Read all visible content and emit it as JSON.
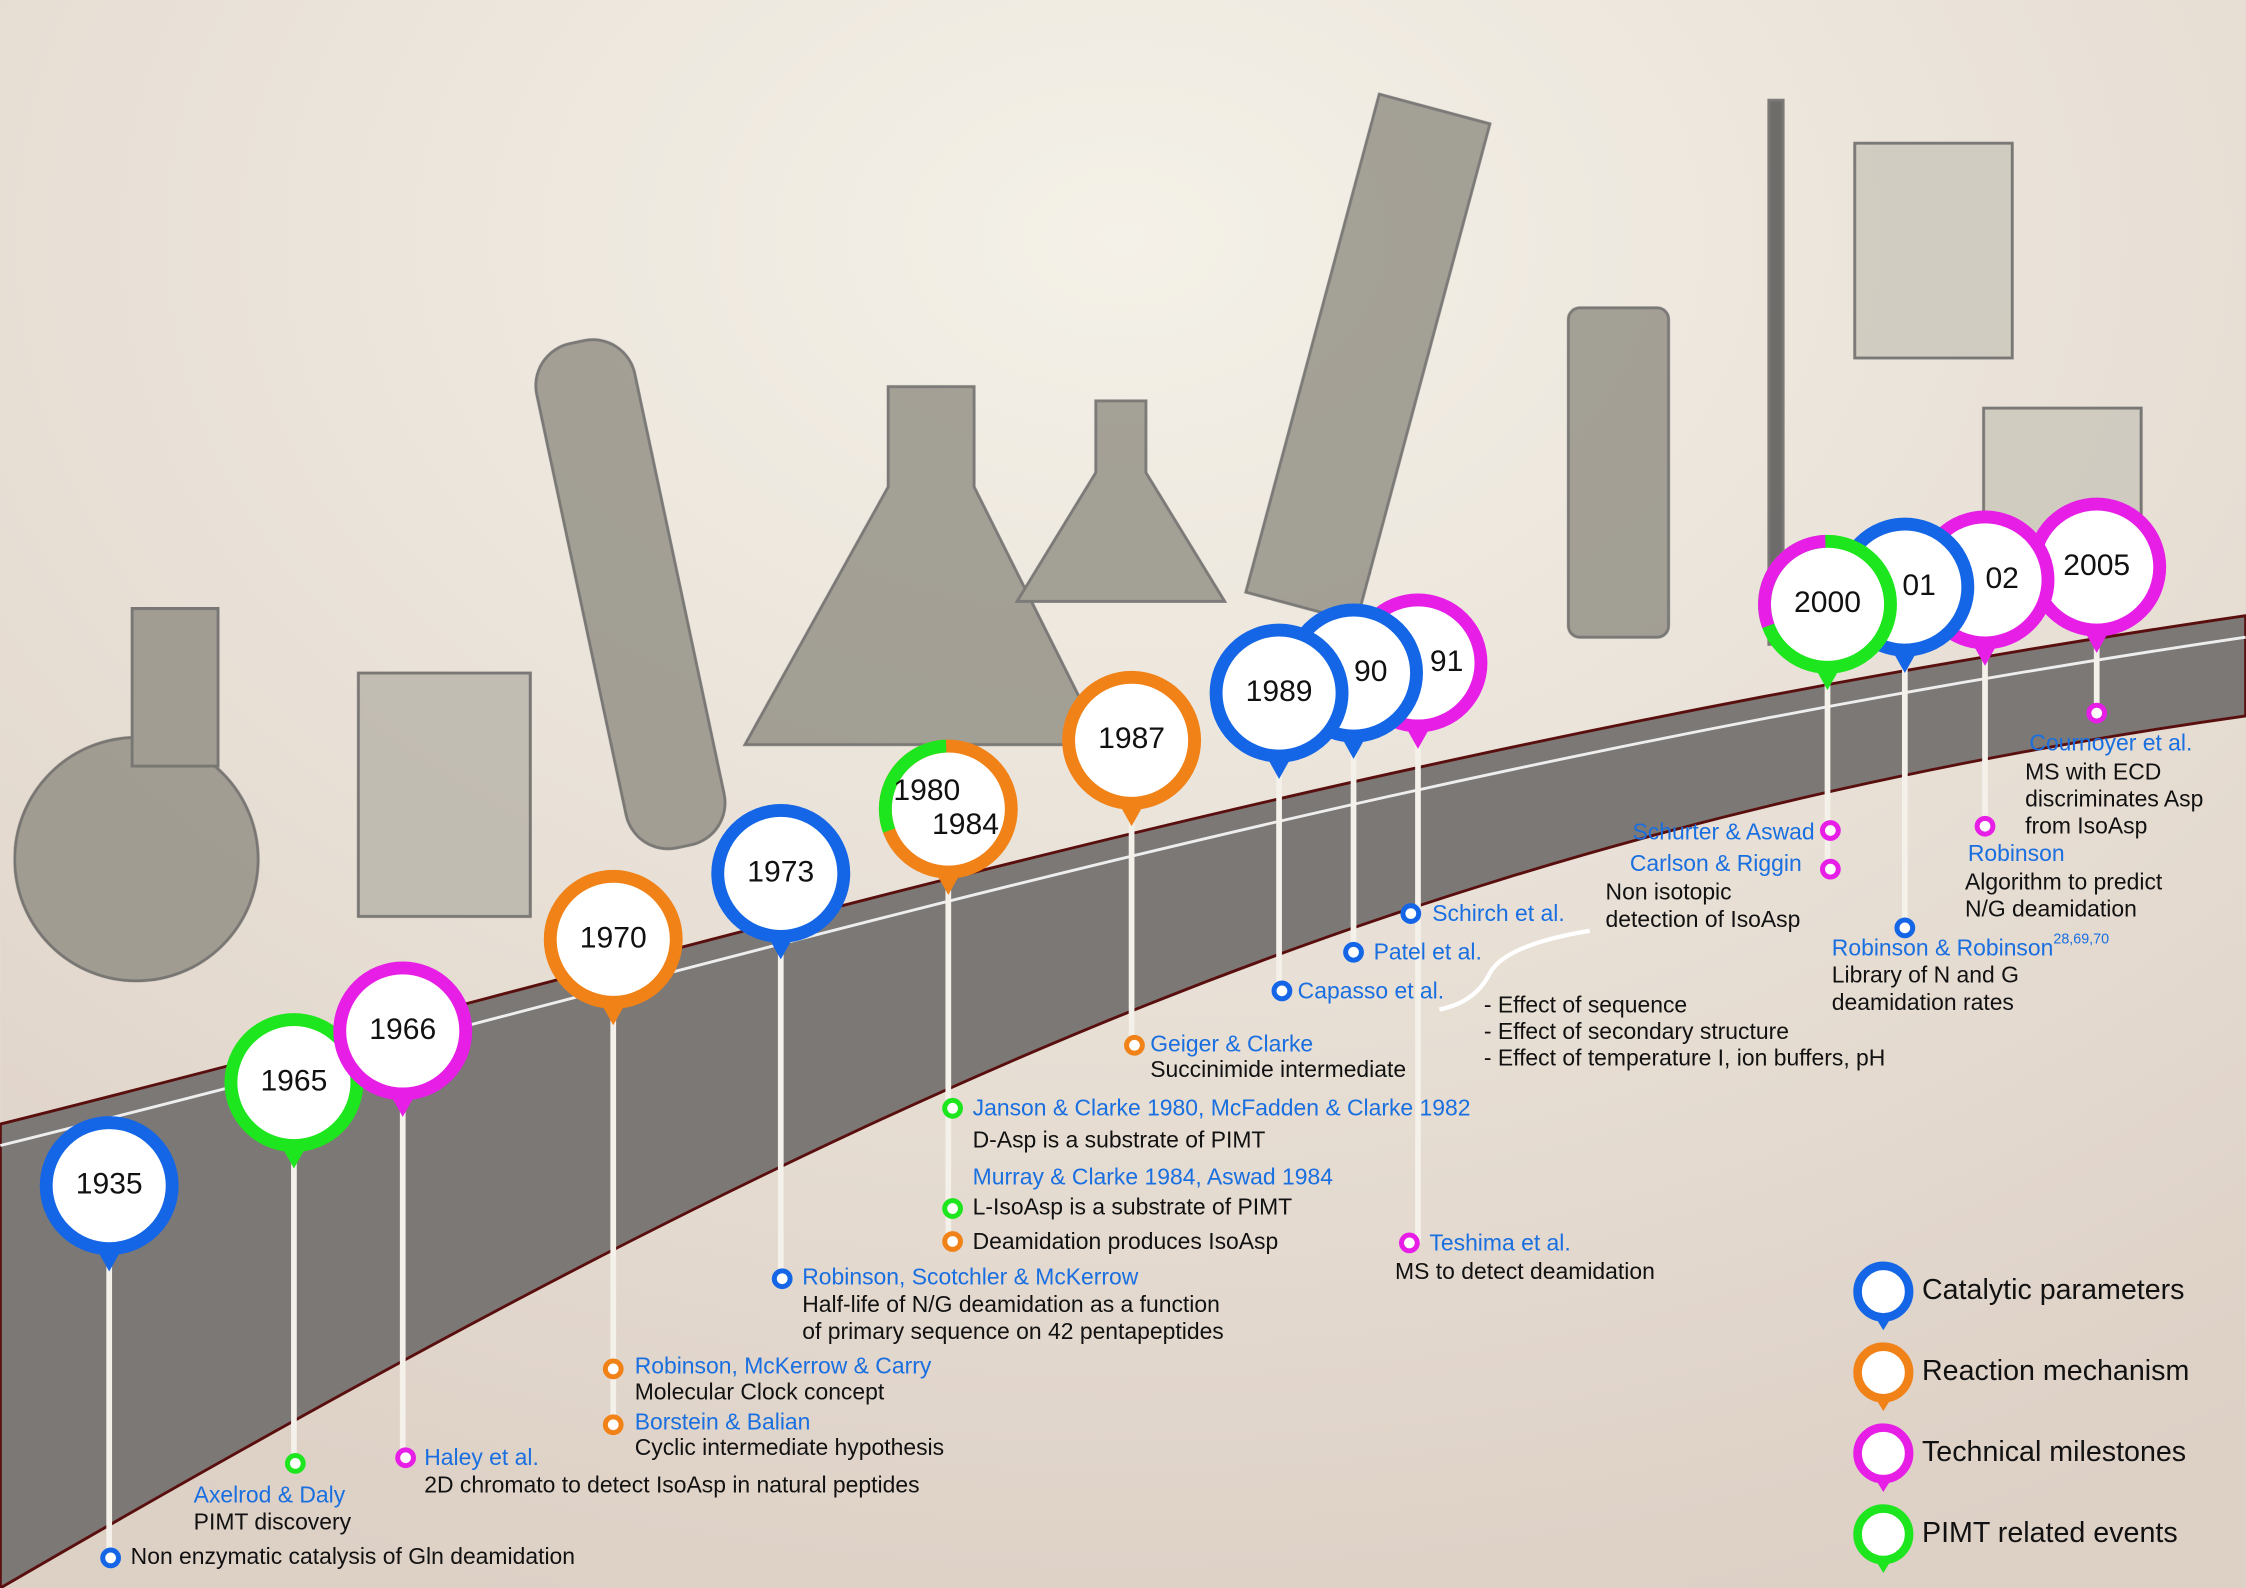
{
  "pins": [
    {
      "year": "1935"
    },
    {
      "year": "1965"
    },
    {
      "year": "1966"
    },
    {
      "year": "1970"
    },
    {
      "year": "1973"
    },
    {
      "year": "1980",
      "year2": "1984"
    },
    {
      "year": "1987"
    },
    {
      "year": "1989"
    },
    {
      "year": "90"
    },
    {
      "year": "91"
    },
    {
      "year": "2000"
    },
    {
      "year": "01"
    },
    {
      "year": "02"
    },
    {
      "year": "2005"
    }
  ],
  "entries": [
    {
      "lines": [
        "Non enzymatic catalysis of Gln deamidation"
      ]
    },
    {
      "author": "Axelrod & Daly",
      "lines": [
        "PIMT discovery"
      ]
    },
    {
      "author": "Haley et al.",
      "lines": [
        "2D chromato to detect IsoAsp in natural peptides"
      ]
    },
    {
      "author": "Robinson, McKerrow & Carry",
      "lines": [
        "Molecular Clock concept"
      ]
    },
    {
      "author": "Borstein & Balian",
      "lines": [
        "Cyclic intermediate hypothesis"
      ]
    },
    {
      "author": "Robinson, Scotchler & McKerrow",
      "lines": [
        "Half-life of N/G deamidation as a function",
        "of primary sequence on 42 pentapeptides"
      ]
    },
    {
      "author": "Janson & Clarke 1980, McFadden & Clarke 1982",
      "lines": [
        "D-Asp is a substrate of PIMT"
      ]
    },
    {
      "author": "Murray & Clarke 1984, Aswad 1984",
      "lines": [
        "L-IsoAsp is a substrate of PIMT"
      ]
    },
    {
      "lines": [
        "Deamidation produces IsoAsp"
      ]
    },
    {
      "author": "Geiger & Clarke",
      "lines": [
        "Succinimide intermediate"
      ]
    },
    {
      "author": "Capasso et al."
    },
    {
      "author": "Patel et al."
    },
    {
      "author": "Schirch et al."
    },
    {
      "author": "Teshima et al.",
      "lines": [
        "MS to detect deamidation"
      ]
    },
    {
      "author": "Schurter & Aswad"
    },
    {
      "author": "Carlson & Riggin",
      "lines": [
        "Non isotopic",
        "detection of IsoAsp"
      ]
    },
    {
      "author": "Robinson & Robinson",
      "sup": "28,69,70",
      "lines": [
        "Library of N and G",
        "deamidation rates"
      ]
    },
    {
      "author": "Robinson",
      "lines": [
        "Algorithm to predict",
        "N/G deamidation"
      ]
    },
    {
      "author": "Cournoyer et al.",
      "lines": [
        "MS with ECD",
        "discriminates Asp",
        "from IsoAsp"
      ]
    }
  ],
  "effects": [
    "- Effect of sequence",
    "- Effect of secondary structure",
    "- Effect of temperature I, ion buffers, pH"
  ],
  "legend": [
    "Catalytic parameters",
    "Reaction mechanism",
    "Technical milestones",
    "PIMT related events"
  ]
}
